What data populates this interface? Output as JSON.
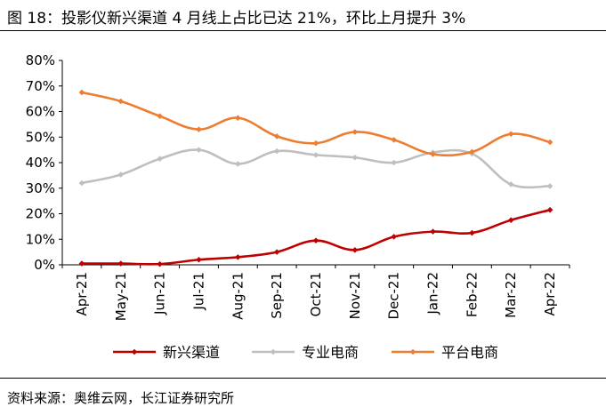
{
  "header": {
    "title": "图 18：投影仪新兴渠道 4 月线上占比已达 21%，环比上月提升 3%"
  },
  "footer": {
    "source": "资料来源：奥维云网，长江证券研究所"
  },
  "chart_data": {
    "type": "line",
    "categories": [
      "Apr-21",
      "May-21",
      "Jun-21",
      "Jul-21",
      "Aug-21",
      "Sep-21",
      "Oct-21",
      "Nov-21",
      "Dec-21",
      "Jan-22",
      "Feb-22",
      "Mar-22",
      "Apr-22"
    ],
    "series": [
      {
        "name": "新兴渠道",
        "color": "#C00000",
        "values": [
          0.5,
          0.5,
          0.3,
          2.0,
          3.0,
          5.0,
          9.5,
          5.8,
          11.0,
          13.0,
          12.5,
          17.5,
          21.5
        ]
      },
      {
        "name": "专业电商",
        "color": "#BFBFBF",
        "values": [
          32.0,
          35.3,
          41.5,
          45.0,
          39.5,
          44.5,
          43.0,
          42.0,
          40.0,
          44.0,
          43.5,
          31.5,
          30.8
        ]
      },
      {
        "name": "平台电商",
        "color": "#ED7D31",
        "values": [
          67.5,
          64.0,
          58.2,
          53.0,
          57.5,
          50.3,
          47.6,
          52.0,
          48.9,
          43.3,
          44.2,
          51.2,
          48.0
        ]
      }
    ],
    "yticks": [
      "0%",
      "10%",
      "20%",
      "30%",
      "40%",
      "50%",
      "60%",
      "70%",
      "80%"
    ],
    "ylim": [
      0,
      80
    ],
    "grid": false,
    "legend_position": "bottom"
  }
}
